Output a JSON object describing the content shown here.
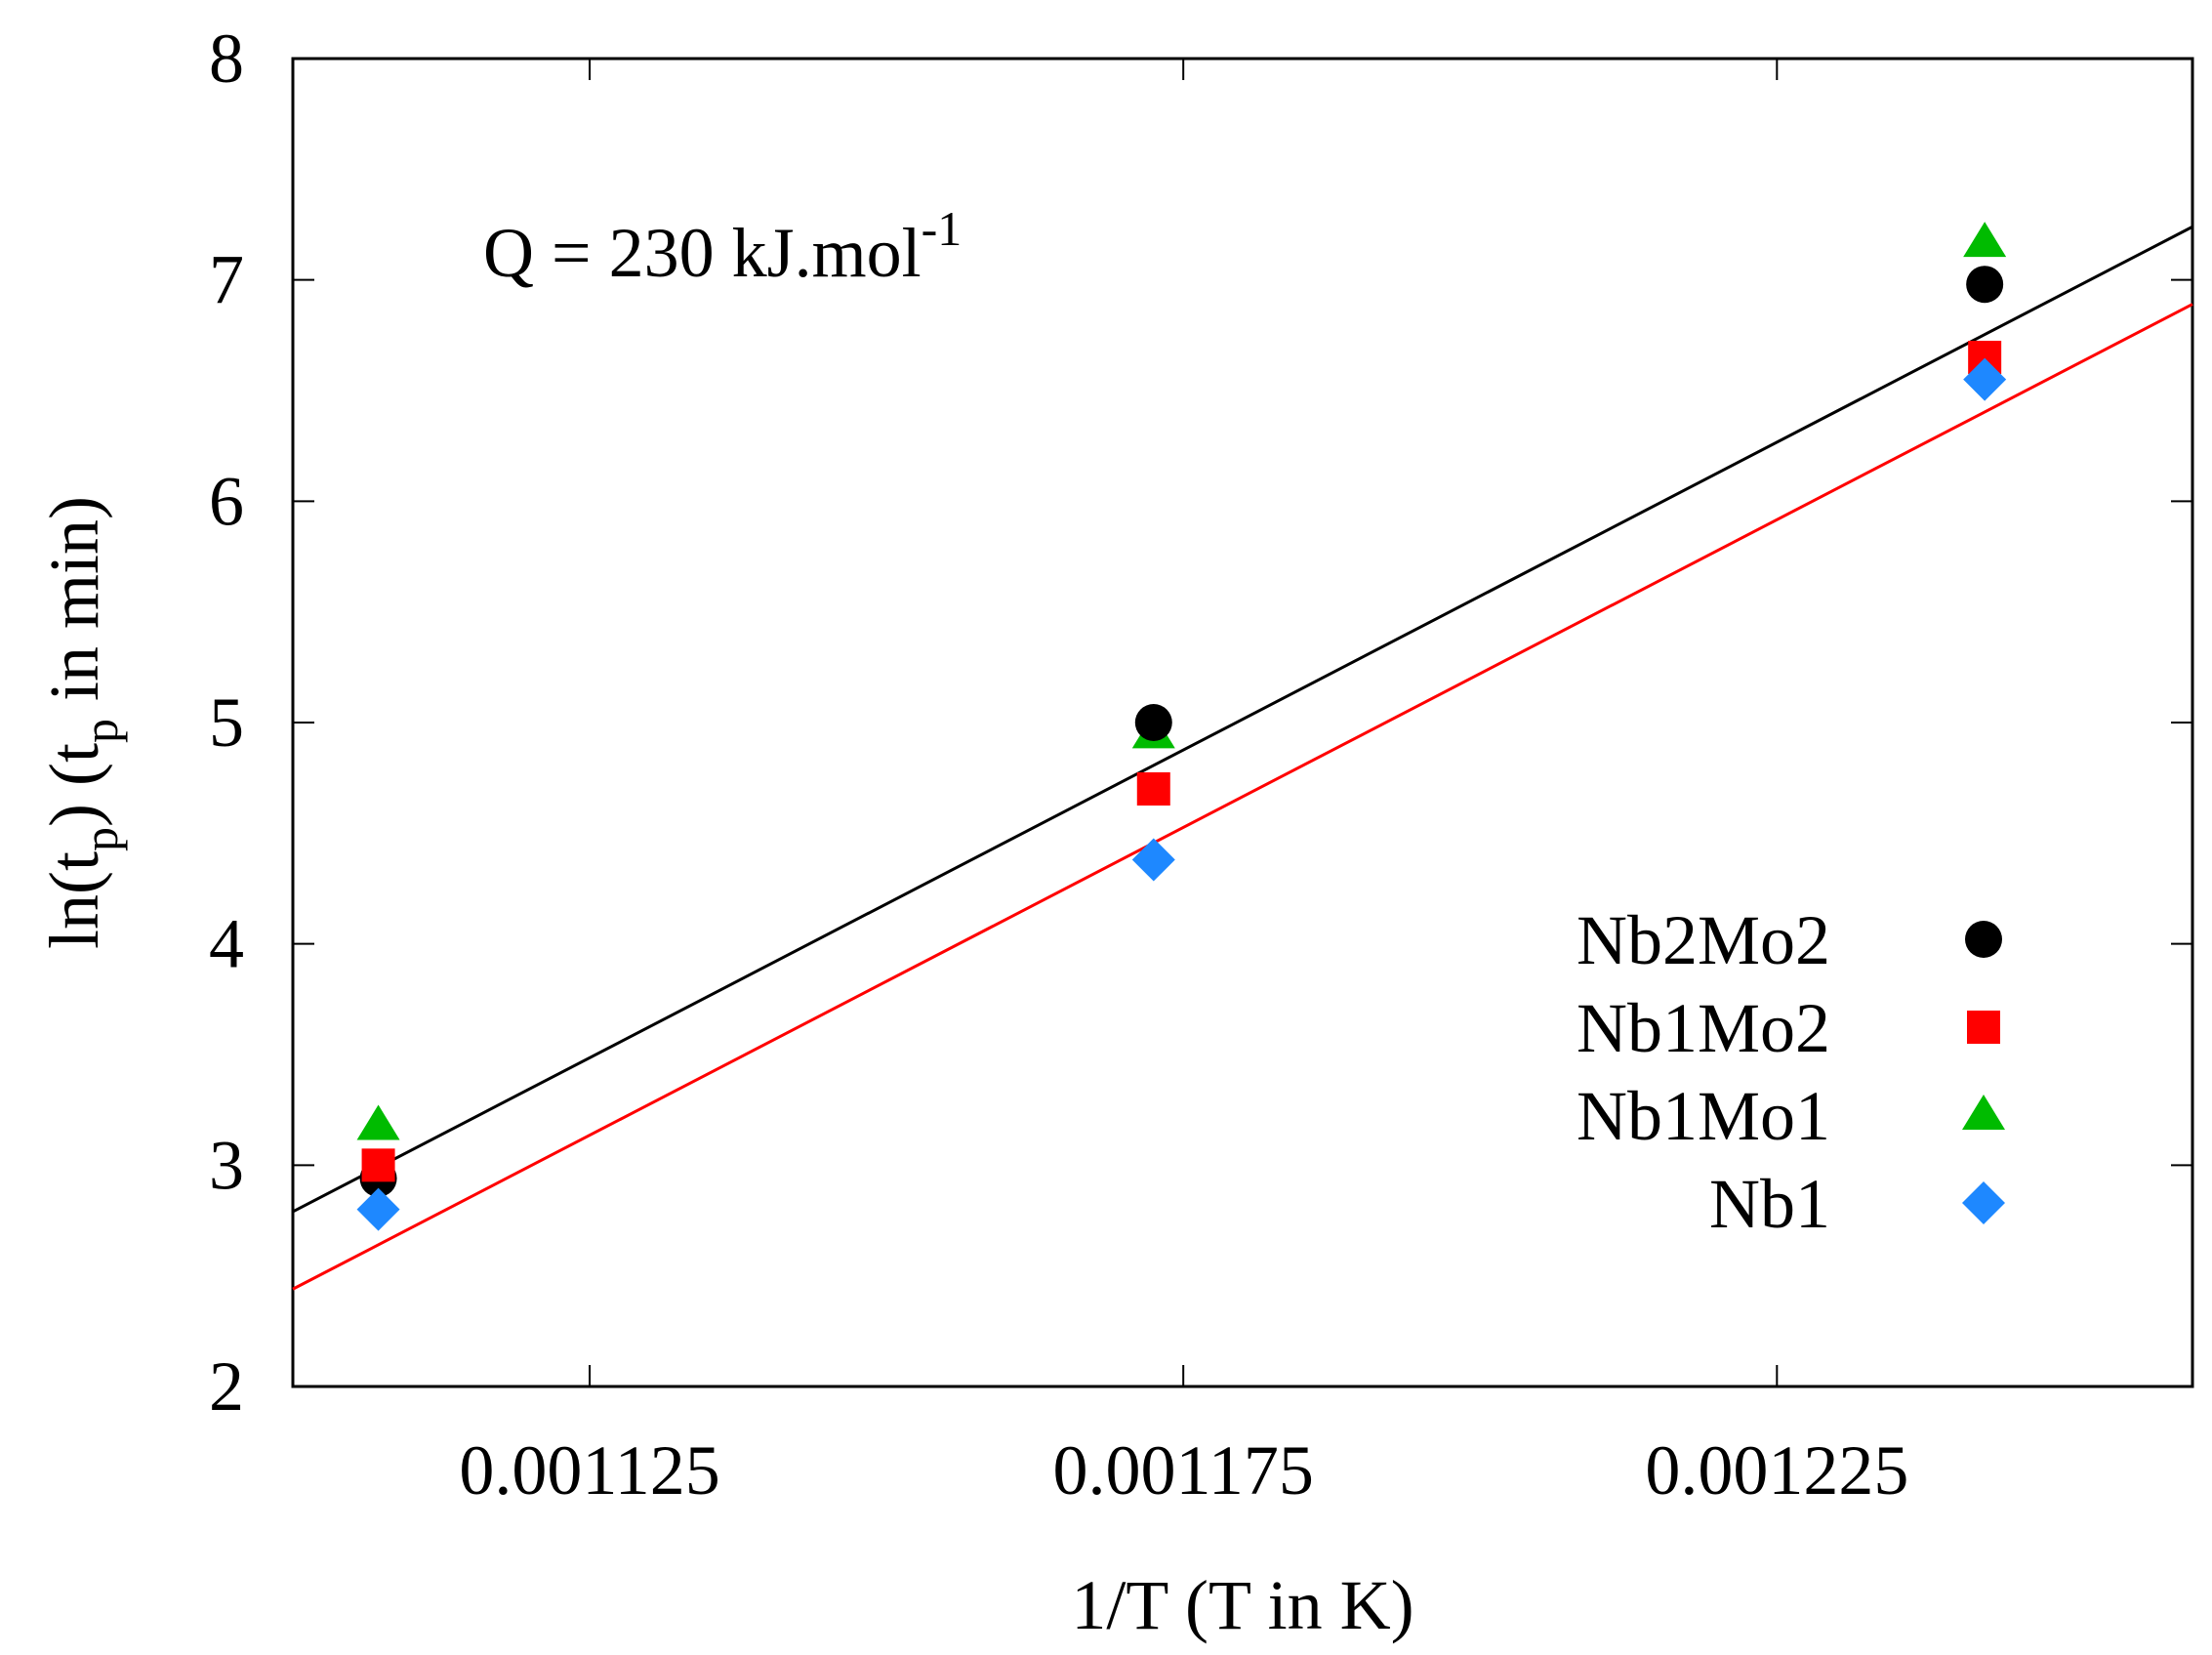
{
  "chart_data": {
    "type": "scatter",
    "xlabel": "1/T (T in K)",
    "ylabel": {
      "prefix": "ln(t",
      "sub1": "p",
      "middle": ") (t",
      "sub2": "p",
      "suffix": " in min)"
    },
    "annotation": {
      "text": "Q = 230 kJ.mol",
      "superscript": "-1"
    },
    "xlim": [
      0.0011,
      0.00126
    ],
    "ylim": [
      2,
      8
    ],
    "x_ticks": [
      {
        "value": 0.001125,
        "label": "0.001125"
      },
      {
        "value": 0.001175,
        "label": "0.001175"
      },
      {
        "value": 0.001225,
        "label": "0.001225"
      }
    ],
    "y_ticks": [
      {
        "value": 2,
        "label": "2"
      },
      {
        "value": 3,
        "label": "3"
      },
      {
        "value": 4,
        "label": "4"
      },
      {
        "value": 5,
        "label": "5"
      },
      {
        "value": 6,
        "label": "6"
      },
      {
        "value": 7,
        "label": "7"
      },
      {
        "value": 8,
        "label": "8"
      }
    ],
    "legend_position": "right",
    "series": [
      {
        "name": "Nb2Mo2",
        "marker": "circle",
        "color": "#000000",
        "x": [
          0.0011072,
          0.0011725,
          0.0012425
        ],
        "y": [
          2.94,
          5.0,
          6.98
        ]
      },
      {
        "name": "Nb1Mo2",
        "marker": "square",
        "color": "#ff0000",
        "x": [
          0.0011072,
          0.0011725,
          0.0012425
        ],
        "y": [
          3.0,
          4.7,
          6.65
        ]
      },
      {
        "name": "Nb1Mo1",
        "marker": "triangle",
        "color": "#00bb00",
        "x": [
          0.0011072,
          0.0011725,
          0.0012425
        ],
        "y": [
          3.18,
          4.95,
          7.17
        ]
      },
      {
        "name": "Nb1",
        "marker": "diamond",
        "color": "#1e88ff",
        "x": [
          0.0011072,
          0.0011725,
          0.0012425
        ],
        "y": [
          2.8,
          4.38,
          6.55
        ]
      }
    ],
    "fit_lines": [
      {
        "name": "fit-black",
        "color": "#000000",
        "x": [
          0.0011,
          0.00126
        ],
        "y": [
          2.79,
          7.24
        ]
      },
      {
        "name": "fit-red",
        "color": "#ff0000",
        "x": [
          0.0011,
          0.00126
        ],
        "y": [
          2.44,
          6.89
        ]
      }
    ]
  }
}
